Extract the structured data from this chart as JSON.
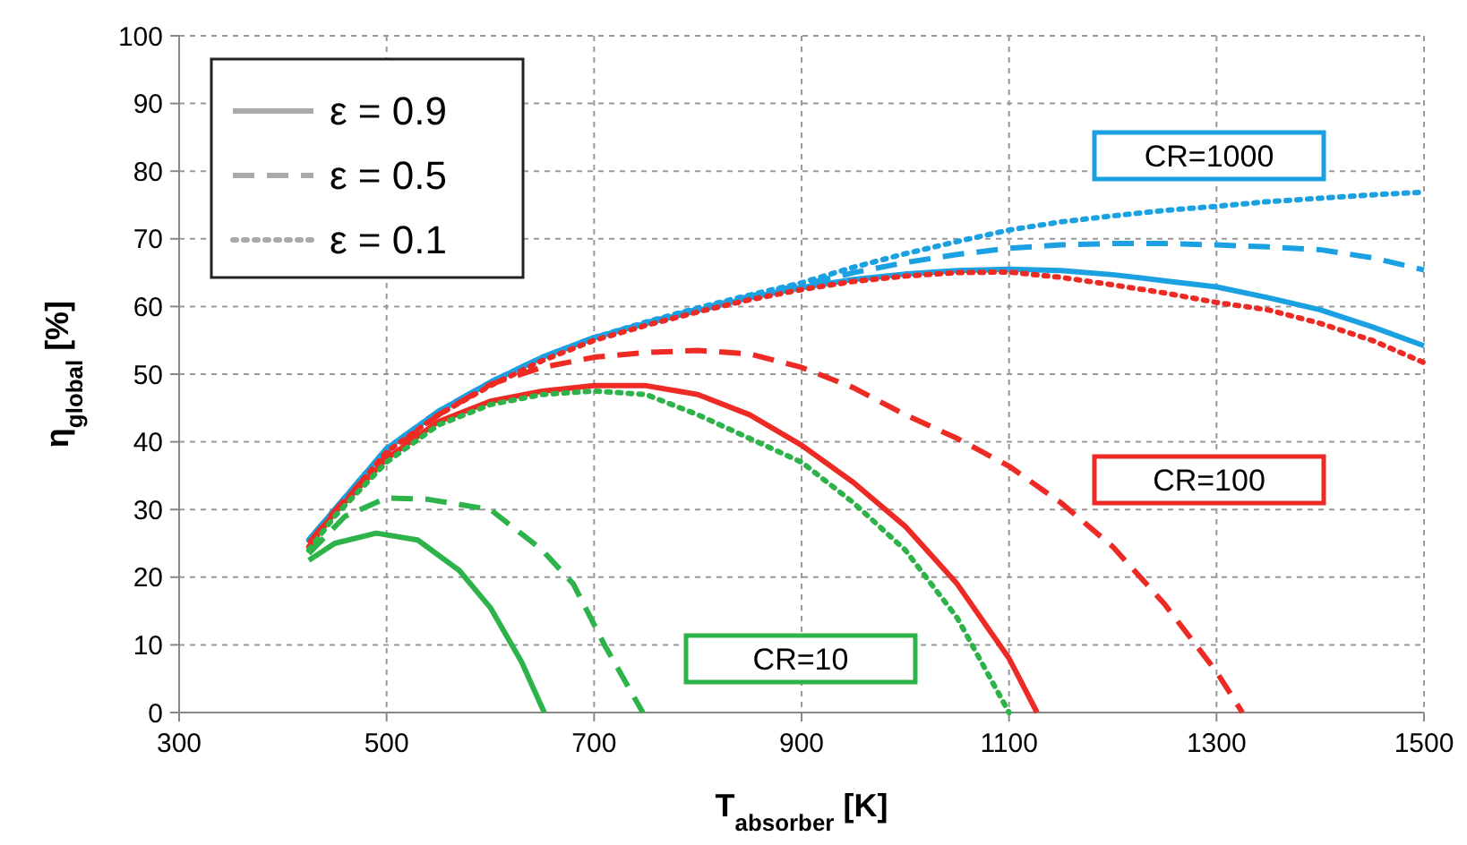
{
  "chart_data": {
    "type": "line",
    "xlabel": "T$_{absorber}$ [K]",
    "ylabel": "η$_{global}$ [%]",
    "xlim": [
      300,
      1500
    ],
    "xticks": [
      300,
      500,
      700,
      900,
      1100,
      1300,
      1500
    ],
    "ylim": [
      0,
      100
    ],
    "yticks": [
      0,
      10,
      20,
      30,
      40,
      50,
      60,
      70,
      80,
      90,
      100
    ],
    "grid": true,
    "series": [
      {
        "color": "#1ba1e2",
        "line_style": "solid",
        "x": [
          425,
          450,
          500,
          550,
          600,
          650,
          700,
          750,
          800,
          850,
          900,
          950,
          1000,
          1050,
          1100,
          1150,
          1200,
          1250,
          1300,
          1350,
          1400,
          1450,
          1500
        ],
        "values": [
          25.5,
          30,
          39,
          44.5,
          48.8,
          52.5,
          55.4,
          57.5,
          59.4,
          61.3,
          62.8,
          64,
          64.8,
          65.3,
          65.5,
          65.3,
          64.7,
          63.8,
          62.9,
          61.3,
          59.5,
          57,
          54.2
        ]
      },
      {
        "color": "#1ba1e2",
        "line_style": "dashed",
        "x": [
          425,
          450,
          500,
          550,
          600,
          650,
          700,
          750,
          800,
          850,
          900,
          950,
          1000,
          1050,
          1100,
          1150,
          1200,
          1250,
          1300,
          1350,
          1400,
          1450,
          1500
        ],
        "values": [
          25.5,
          30,
          39,
          44.5,
          48.8,
          52.5,
          55.4,
          57.6,
          59.6,
          61.5,
          63.2,
          65,
          66.5,
          67.7,
          68.6,
          69.1,
          69.3,
          69.3,
          69.1,
          68.8,
          68.4,
          67.2,
          65.4
        ]
      },
      {
        "color": "#1ba1e2",
        "line_style": "dotted",
        "x": [
          425,
          450,
          500,
          550,
          600,
          650,
          700,
          750,
          800,
          850,
          900,
          950,
          1000,
          1050,
          1100,
          1150,
          1200,
          1250,
          1300,
          1350,
          1400,
          1450,
          1500
        ],
        "values": [
          25.5,
          30,
          39,
          44.5,
          48.8,
          52.5,
          55.4,
          57.7,
          59.8,
          61.7,
          63.5,
          65.8,
          67.8,
          69.6,
          71.3,
          72.5,
          73.4,
          74.2,
          74.8,
          75.5,
          76,
          76.5,
          76.9
        ]
      },
      {
        "color": "#ee2a24",
        "line_style": "solid",
        "x": [
          425,
          450,
          500,
          550,
          600,
          650,
          700,
          750,
          800,
          850,
          900,
          950,
          1000,
          1050,
          1100,
          1127
        ],
        "values": [
          25,
          29.5,
          37.5,
          43,
          46,
          47.5,
          48.3,
          48.3,
          47,
          44,
          39.5,
          34,
          27.5,
          19,
          8,
          0
        ]
      },
      {
        "color": "#ee2a24",
        "line_style": "dashed",
        "x": [
          425,
          450,
          500,
          550,
          600,
          650,
          700,
          750,
          800,
          850,
          900,
          950,
          1000,
          1050,
          1100,
          1150,
          1200,
          1250,
          1300,
          1325
        ],
        "values": [
          25,
          29.8,
          38,
          44,
          48.5,
          51,
          52.5,
          53.2,
          53.5,
          53,
          51,
          48,
          44,
          40.5,
          36.4,
          31,
          24.5,
          16,
          6,
          0
        ]
      },
      {
        "color": "#ee2a24",
        "line_style": "dotted",
        "x": [
          425,
          450,
          500,
          550,
          600,
          650,
          700,
          750,
          800,
          850,
          900,
          950,
          1000,
          1050,
          1100,
          1150,
          1200,
          1250,
          1300,
          1350,
          1400,
          1450,
          1500
        ],
        "values": [
          24.5,
          29.5,
          38.5,
          44,
          48.3,
          52,
          55,
          57.2,
          59.2,
          61,
          62.5,
          63.7,
          64.5,
          65,
          65.1,
          64.3,
          63.2,
          62,
          60.6,
          59.5,
          57.5,
          55,
          51.7
        ]
      },
      {
        "color": "#2db34a",
        "line_style": "solid",
        "x": [
          425,
          450,
          490,
          530,
          570,
          600,
          630,
          652
        ],
        "values": [
          22.5,
          25,
          26.5,
          25.5,
          21,
          15.5,
          7.5,
          0
        ]
      },
      {
        "color": "#2db34a",
        "line_style": "dashed",
        "x": [
          425,
          460,
          500,
          540,
          600,
          650,
          680,
          710,
          747
        ],
        "values": [
          23.5,
          29,
          31.7,
          31.5,
          30,
          24,
          19,
          10,
          0
        ]
      },
      {
        "color": "#2db34a",
        "line_style": "dotted",
        "x": [
          425,
          450,
          500,
          550,
          600,
          650,
          700,
          750,
          800,
          850,
          900,
          950,
          1000,
          1050,
          1100
        ],
        "values": [
          24,
          29,
          37,
          42.5,
          45.5,
          47,
          47.5,
          47,
          44,
          40.5,
          37,
          31,
          24,
          14,
          0
        ]
      }
    ],
    "annotations": [
      "ε = 0.9",
      "ε = 0.5",
      "ε = 0.1",
      "CR=1000",
      "CR=100",
      "CR=10"
    ]
  }
}
